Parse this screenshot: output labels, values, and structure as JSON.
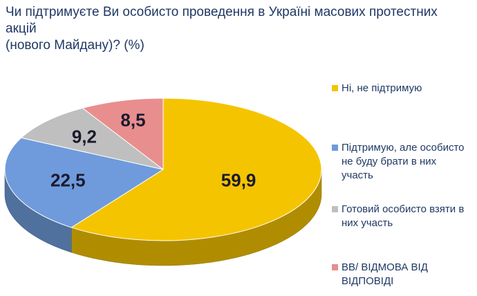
{
  "title_line1": "Чи підтримуєте Ви особисто проведення в Україні масових протестних акцій",
  "title_line2": "(нового Майдану)? (%)",
  "chart_data": {
    "type": "pie",
    "title": "Чи підтримуєте Ви особисто проведення в Україні масових протестних акцій (нового Майдану)? (%)",
    "categories": [
      "Ні, не підтримую",
      "Підтримую, але особисто не буду брати в них участь",
      "Готовий особисто взяти в них участь",
      "ВВ/ ВІДМОВА ВІД ВІДПОВІДІ"
    ],
    "values": [
      59.9,
      22.5,
      9.2,
      8.5
    ],
    "value_labels": [
      "59,9",
      "22,5",
      "9,2",
      "8,5"
    ],
    "colors": [
      "#F5C400",
      "#6F9BDC",
      "#BFBFBF",
      "#E88E8E"
    ],
    "legend_position": "right",
    "three_d": true
  },
  "legend": [
    {
      "line1": "Ні, не підтримую",
      "line2": ""
    },
    {
      "line1": "Підтримую, але особисто",
      "line2": "не буду брати в них",
      "line3": "участь"
    },
    {
      "line1": "Готовий особисто взяти в",
      "line2": "них участь"
    },
    {
      "line1": "ВВ/ ВІДМОВА ВІД",
      "line2": "ВІДПОВІДІ"
    }
  ]
}
